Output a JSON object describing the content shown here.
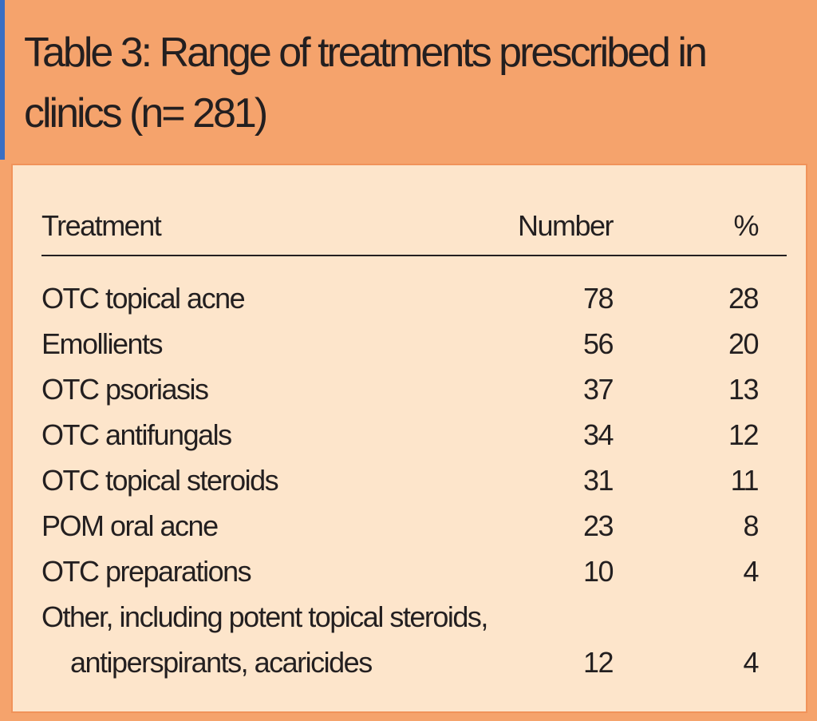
{
  "header": {
    "title": "Table 3: Range of treatments prescribed in clinics (n= 281)"
  },
  "table": {
    "columns": [
      "Treatment",
      "Number",
      "%"
    ],
    "rows": [
      [
        "OTC topical acne",
        78,
        28
      ],
      [
        "Emollients",
        56,
        20
      ],
      [
        "OTC psoriasis",
        37,
        13
      ],
      [
        "OTC antifungals",
        34,
        12
      ],
      [
        "OTC topical steroids",
        31,
        11
      ],
      [
        "POM oral acne",
        23,
        8
      ],
      [
        "OTC preparations",
        10,
        4
      ],
      [
        [
          "Other, including potent topical steroids,",
          "antiperspirants, acaricides"
        ],
        12,
        4
      ]
    ]
  }
}
